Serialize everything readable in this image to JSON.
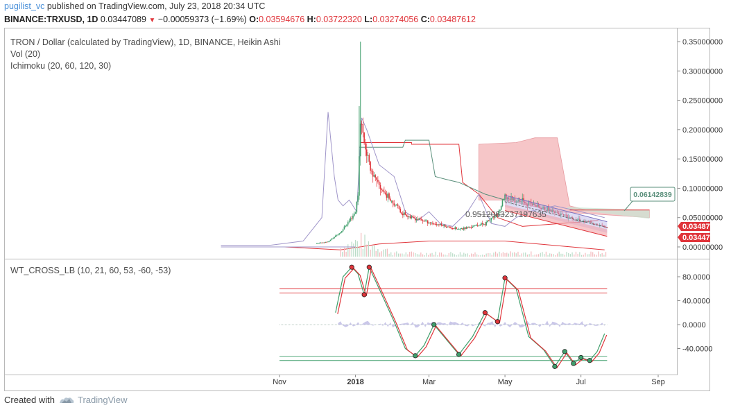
{
  "header": {
    "author": "pugilist_vc",
    "published_text": "published on TradingView.com, July 23, 2018 20:34 UTC",
    "symbol": "BINANCE:TRXUSD, 1D",
    "last": "0.03447089",
    "change": "−0.00059373 (−1.69%)",
    "o_label": "O:",
    "o_value": "0.03594676",
    "h_label": "H:",
    "h_value": "0.03722320",
    "l_label": "L:",
    "l_value": "0.03274056",
    "c_label": "C:",
    "c_value": "0.03487612"
  },
  "legend": {
    "main": "TRON / Dollar (calculated by TradingView), 1D, BINANCE, Heikin Ashi",
    "vol": "Vol (20)",
    "ichimoku": "Ichimoku (20, 60, 120, 30)",
    "osc": "WT_CROSS_LB (10, 21, 60, 53, -60, -53)"
  },
  "price_tags": {
    "projection": "0.06142839",
    "close": "0.03487612",
    "last": "0.03447089",
    "fib_text": "0.9512063237197635"
  },
  "footer": {
    "created_with": "Created with",
    "brand": "TradingView"
  },
  "colors": {
    "up": "#3f9e6b",
    "down": "#e0353b",
    "cloud_red": "#f6c6c8",
    "cloud_green": "#c9e6d3",
    "lavender": "#9f95c9",
    "wt_fill": "#b4afe0",
    "accent": "#4a90d9"
  },
  "chart_data": [
    {
      "type": "line",
      "title": "TRON / Dollar (calculated by TradingView), 1D, BINANCE, Heikin Ashi",
      "x_ticks": [
        "Nov",
        "2018",
        "Mar",
        "May",
        "Jul",
        "Sep"
      ],
      "y_ticks": [
        "0.35000000",
        "0.30000000",
        "0.25000000",
        "0.20000000",
        "0.15000000",
        "0.10000000",
        "0.05000000",
        "0.00000000"
      ],
      "ylim": [
        0,
        0.355
      ],
      "series": [
        {
          "name": "",
          "x": [
            "2017-09-15",
            "2017-10-15",
            "2017-11-01",
            "2017-11-15",
            "2017-12-01",
            "2017-12-10",
            "2017-12-20",
            "2017-12-27",
            "2018-01-01",
            "2018-01-03",
            "2018-01-05",
            "2018-01-08",
            "2018-01-12",
            "2018-01-18",
            "2018-01-25",
            "2018-02-01",
            "2018-02-06",
            "2018-02-15",
            "2018-02-25",
            "2018-03-05",
            "2018-03-15",
            "2018-03-25",
            "2018-04-05",
            "2018-04-15",
            "2018-04-25",
            "2018-05-01",
            "2018-05-10",
            "2018-05-20",
            "2018-06-01",
            "2018-06-10",
            "2018-06-20",
            "2018-07-01",
            "2018-07-10",
            "2018-07-20"
          ],
          "y": [
            0.002,
            0.002,
            0.002,
            0.004,
            0.006,
            0.009,
            0.025,
            0.045,
            0.06,
            0.09,
            0.22,
            0.18,
            0.14,
            0.11,
            0.09,
            0.075,
            0.06,
            0.05,
            0.045,
            0.04,
            0.035,
            0.03,
            0.035,
            0.04,
            0.055,
            0.085,
            0.08,
            0.075,
            0.065,
            0.06,
            0.05,
            0.045,
            0.04,
            0.0345
          ]
        }
      ]
    },
    {
      "type": "line",
      "title": "WT_CROSS_LB (10, 21, 60, 53, -60, -53)",
      "y_ticks": [
        "80.0000",
        "40.0000",
        "0.0000",
        "-40.0000"
      ],
      "ylim": [
        -72,
        100
      ],
      "levels": [
        60,
        53,
        -53,
        -60
      ],
      "series": [
        {
          "name": "",
          "x": [
            "2017-12-16",
            "2017-12-22",
            "2017-12-29",
            "2018-01-03",
            "2018-01-08",
            "2018-01-12",
            "2018-01-20",
            "2018-02-01",
            "2018-02-10",
            "2018-02-18",
            "2018-02-25",
            "2018-03-05",
            "2018-03-15",
            "2018-03-25",
            "2018-04-05",
            "2018-04-15",
            "2018-04-25",
            "2018-05-01",
            "2018-05-10",
            "2018-05-20",
            "2018-06-01",
            "2018-06-10",
            "2018-06-18",
            "2018-06-25",
            "2018-07-01",
            "2018-07-08",
            "2018-07-14",
            "2018-07-20"
          ],
          "y": [
            20,
            80,
            96,
            85,
            50,
            96,
            60,
            5,
            -40,
            -52,
            -35,
            0,
            -25,
            -50,
            -20,
            20,
            5,
            78,
            60,
            -20,
            -42,
            -70,
            -45,
            -65,
            -55,
            -60,
            -45,
            -15
          ]
        }
      ]
    }
  ]
}
